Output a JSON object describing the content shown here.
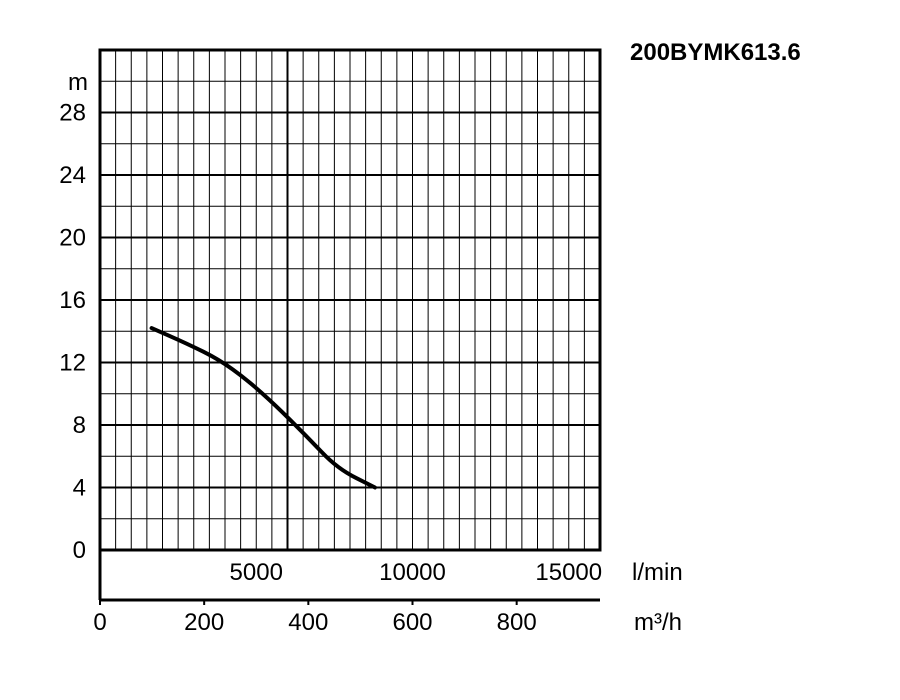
{
  "chart_data": {
    "type": "line",
    "title": "200BYMK613.6",
    "y_unit": "m",
    "ylim": [
      0,
      32
    ],
    "y_ticks": [
      0,
      4,
      8,
      12,
      16,
      20,
      24,
      28
    ],
    "y_tick_labels": [
      "0",
      "4",
      "8",
      "12",
      "16",
      "20",
      "24",
      "28"
    ],
    "x_unit": "l/min",
    "xlim": [
      0,
      16000
    ],
    "x_ticks": [
      5000,
      10000,
      15000
    ],
    "x_tick_labels": [
      "5000",
      "10000",
      "15000"
    ],
    "x2_unit": "m³/h",
    "x2lim": [
      0,
      960
    ],
    "x2_ticks": [
      0,
      200,
      400,
      600,
      800
    ],
    "x2_tick_labels": [
      "0",
      "200",
      "400",
      "600",
      "800"
    ],
    "grid": true,
    "series": [
      {
        "color": "#000000",
        "x": [
          1650,
          2800,
          3800,
          4700,
          5600,
          6600,
          7600,
          8800
        ],
        "y": [
          14.2,
          13.2,
          12.2,
          10.9,
          9.3,
          7.3,
          5.2,
          4.0
        ]
      }
    ]
  }
}
